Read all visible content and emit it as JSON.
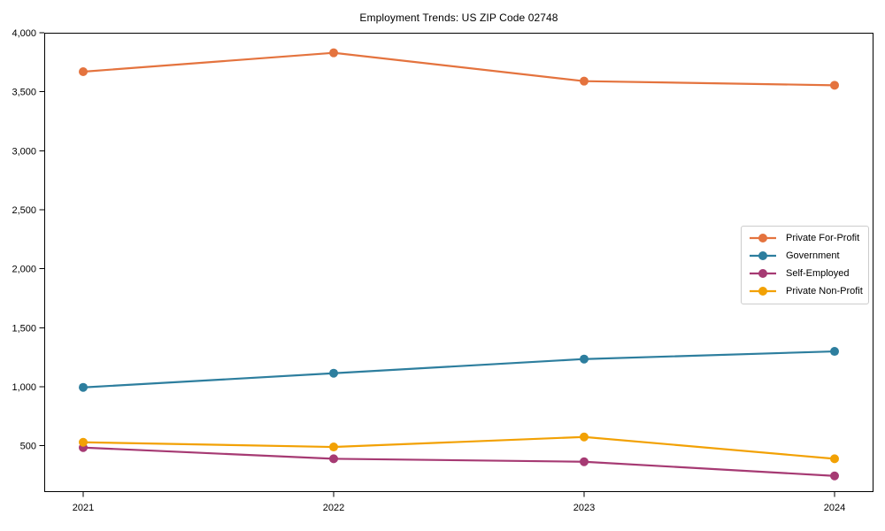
{
  "figure": {
    "title": "Employment Trends: US ZIP Code 02748"
  },
  "chart_data": {
    "type": "line",
    "title": "Employment Trends: US ZIP Code 02748",
    "categories": [
      "2021",
      "2022",
      "2023",
      "2024"
    ],
    "series": [
      {
        "name": "Private For-Profit",
        "color": "#e4733e",
        "values": [
          3670,
          3830,
          3590,
          3555
        ]
      },
      {
        "name": "Government",
        "color": "#2d7e9e",
        "values": [
          995,
          1115,
          1235,
          1300
        ]
      },
      {
        "name": "Self-Employed",
        "color": "#a63a73",
        "values": [
          485,
          390,
          365,
          245
        ]
      },
      {
        "name": "Private Non-Profit",
        "color": "#f2a104",
        "values": [
          530,
          490,
          575,
          390
        ]
      }
    ],
    "xlabel": "",
    "ylabel": "",
    "ylim": [
      108,
      4000
    ],
    "yticks": [
      500,
      1000,
      1500,
      2000,
      2500,
      3000,
      3500,
      4000
    ],
    "ytick_labels": [
      "500",
      "1,000",
      "1,500",
      "2,000",
      "2,500",
      "3,000",
      "3,500",
      "4,000"
    ],
    "grid": false,
    "legend_position": "right-center",
    "marker": "circle",
    "axis_color": "#000000",
    "legend_border_color": "#cccccc"
  }
}
